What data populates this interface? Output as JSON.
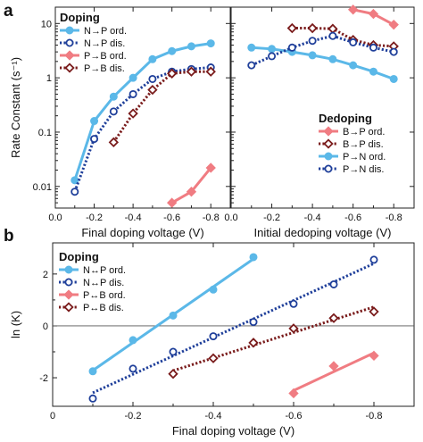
{
  "colors": {
    "n_p_ordered": "#5bb8e8",
    "n_p_disordered": "#1f3f9a",
    "p_b_ordered": "#f07c82",
    "p_b_disordered": "#7a1c1c"
  },
  "panel_labels": [
    "a",
    "b"
  ],
  "chart_data": [
    {
      "panel": "a-left",
      "type": "line",
      "y_scale": "log",
      "xlim": [
        0,
        -0.9
      ],
      "ylim": [
        0.004,
        20
      ],
      "x_ticks": [
        "0.0",
        "-0.2",
        "-0.4",
        "-0.6",
        "-0.8"
      ],
      "y_ticks": [
        "0.01",
        "0.1",
        "1",
        "10"
      ],
      "xlabel": "Final doping voltage (V)",
      "ylabel": "Rate Constant (s⁻¹)",
      "legend_title": "Doping",
      "legend_position": "top-left",
      "series": [
        {
          "name": "N→P ord.",
          "color": "#5bb8e8",
          "marker": "filled-circle",
          "line": "solid",
          "x": [
            -0.1,
            -0.2,
            -0.3,
            -0.4,
            -0.5,
            -0.6,
            -0.7,
            -0.8
          ],
          "y": [
            0.013,
            0.16,
            0.45,
            1.0,
            2.2,
            3.1,
            3.8,
            4.3
          ]
        },
        {
          "name": "N→P dis.",
          "color": "#1f3f9a",
          "marker": "open-circle",
          "line": "dotted",
          "x": [
            -0.1,
            -0.2,
            -0.3,
            -0.4,
            -0.5,
            -0.6,
            -0.7,
            -0.8
          ],
          "y": [
            0.008,
            0.075,
            0.24,
            0.5,
            0.95,
            1.3,
            1.45,
            1.55
          ]
        },
        {
          "name": "P→B ord.",
          "color": "#f07c82",
          "marker": "filled-diamond",
          "line": "solid",
          "x": [
            -0.6,
            -0.7,
            -0.8
          ],
          "y": [
            0.005,
            0.008,
            0.022
          ]
        },
        {
          "name": "P→B dis.",
          "color": "#7a1c1c",
          "marker": "open-diamond",
          "line": "dotted",
          "x": [
            -0.3,
            -0.4,
            -0.5,
            -0.6,
            -0.7,
            -0.8
          ],
          "y": [
            0.065,
            0.22,
            0.6,
            1.2,
            1.3,
            1.3
          ]
        }
      ]
    },
    {
      "panel": "a-right",
      "type": "line",
      "y_scale": "log",
      "xlim": [
        0,
        -0.9
      ],
      "ylim": [
        0.004,
        20
      ],
      "x_ticks": [
        "0.0",
        "-0.2",
        "-0.4",
        "-0.6",
        "-0.8"
      ],
      "xlabel": "Initial dedoping voltage (V)",
      "legend_title": "Dedoping",
      "legend_position": "bottom-right",
      "series": [
        {
          "name": "B→P ord.",
          "color": "#f07c82",
          "marker": "filled-diamond",
          "line": "solid",
          "x": [
            -0.6,
            -0.7,
            -0.8
          ],
          "y": [
            18,
            15,
            9.5
          ]
        },
        {
          "name": "B→P dis.",
          "color": "#7a1c1c",
          "marker": "open-diamond",
          "line": "dotted",
          "x": [
            -0.3,
            -0.4,
            -0.5,
            -0.6,
            -0.7,
            -0.8
          ],
          "y": [
            8.2,
            8.2,
            8.0,
            5.0,
            4.0,
            3.8
          ]
        },
        {
          "name": "P→N ord.",
          "color": "#5bb8e8",
          "marker": "filled-circle",
          "line": "solid",
          "x": [
            -0.1,
            -0.2,
            -0.3,
            -0.4,
            -0.5,
            -0.6,
            -0.7,
            -0.8
          ],
          "y": [
            3.6,
            3.4,
            3.0,
            2.6,
            2.2,
            1.7,
            1.3,
            0.95
          ]
        },
        {
          "name": "P→N dis.",
          "color": "#1f3f9a",
          "marker": "open-circle",
          "line": "dotted",
          "x": [
            -0.1,
            -0.2,
            -0.3,
            -0.4,
            -0.5,
            -0.6,
            -0.7,
            -0.8
          ],
          "y": [
            1.7,
            2.5,
            3.6,
            4.8,
            5.9,
            4.5,
            3.6,
            3.0
          ]
        }
      ]
    },
    {
      "panel": "b",
      "type": "scatter",
      "xlim": [
        0,
        -0.9
      ],
      "ylim": [
        -3.1,
        3.2
      ],
      "x_ticks": [
        "0",
        "-0.2",
        "-0.4",
        "-0.6",
        "-0.8"
      ],
      "y_ticks": [
        "-2",
        "0",
        "2"
      ],
      "xlabel": "Final doping voltage (V)",
      "ylabel": "ln (K)",
      "zero_line": true,
      "legend_title": "Doping",
      "legend_position": "top-left",
      "series": [
        {
          "name": "N↔P ord.",
          "color": "#5bb8e8",
          "marker": "filled-circle",
          "line": "solid-fit",
          "x": [
            -0.1,
            -0.2,
            -0.3,
            -0.4,
            -0.5
          ],
          "y": [
            -1.75,
            -0.55,
            0.4,
            1.4,
            2.65
          ]
        },
        {
          "name": "N↔P dis.",
          "color": "#1f3f9a",
          "marker": "open-circle",
          "line": "dotted-fit",
          "x": [
            -0.1,
            -0.2,
            -0.3,
            -0.4,
            -0.5,
            -0.6,
            -0.7,
            -0.8
          ],
          "y": [
            -2.8,
            -1.65,
            -1.0,
            -0.4,
            0.15,
            0.85,
            1.6,
            2.55
          ]
        },
        {
          "name": "P↔B ord.",
          "color": "#f07c82",
          "marker": "filled-diamond",
          "line": "solid-fit",
          "x": [
            -0.6,
            -0.7,
            -0.8
          ],
          "y": [
            -2.6,
            -1.55,
            -1.15
          ]
        },
        {
          "name": "P↔B dis.",
          "color": "#7a1c1c",
          "marker": "open-diamond",
          "line": "dotted-fit",
          "x": [
            -0.3,
            -0.4,
            -0.5,
            -0.6,
            -0.7,
            -0.8
          ],
          "y": [
            -1.85,
            -1.25,
            -0.65,
            -0.1,
            0.3,
            0.55
          ]
        }
      ]
    }
  ]
}
